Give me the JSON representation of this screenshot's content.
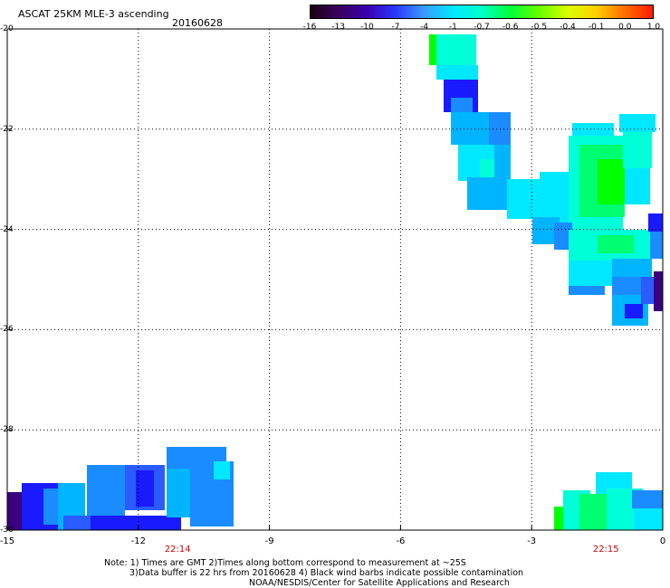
{
  "header": {
    "title": "ASCAT 25KM MLE-3 ascending",
    "date": "20160628"
  },
  "colorbar": {
    "labels": [
      "-16",
      "-13",
      "-10",
      "-7",
      "-4",
      "-1",
      "-0.7",
      "-0.6",
      "-0.5",
      "-0.4",
      "-0.1",
      "0.0",
      "1.0"
    ],
    "colors": [
      "#1a0010",
      "#3a0060",
      "#3a00b0",
      "#2a3aff",
      "#3a9cff",
      "#00e8ff",
      "#00ffc8",
      "#00ff3a",
      "#66ff00",
      "#d8ff00",
      "#ffd000",
      "#ff7000",
      "#ff1a00"
    ]
  },
  "map": {
    "x_ticks": [
      "-15",
      "-12",
      "-9",
      "-6",
      "-3",
      "0"
    ],
    "y_ticks": [
      "-20",
      "-22",
      "-24",
      "-26",
      "-28",
      "-30"
    ],
    "lon_range": [
      -15,
      0
    ],
    "lat_range": [
      -30,
      -20
    ],
    "times": [
      {
        "label": "22:14",
        "lon": -11.1
      },
      {
        "label": "22:15",
        "lon": -1.3
      }
    ],
    "swath_colors": {
      "dark_purple": "#3a0080",
      "blue": "#1a1aff",
      "mid_blue": "#2a5cff",
      "light_blue": "#1a8cff",
      "sky": "#00b4ff",
      "cyan": "#00e8ff",
      "aqua": "#00ffd8",
      "green": "#00ff70",
      "bright_green": "#00ff00"
    }
  },
  "notes": {
    "line1": "Note: 1) Times are GMT 2)Times along bottom correspond to measurement at ~25S",
    "line2": "3)Data buffer is 22 hrs from 20160628 4) Black wind barbs indicate possible contamination",
    "line3": "NOAA/NESDIS/Center for Satellite Applications and Research"
  }
}
